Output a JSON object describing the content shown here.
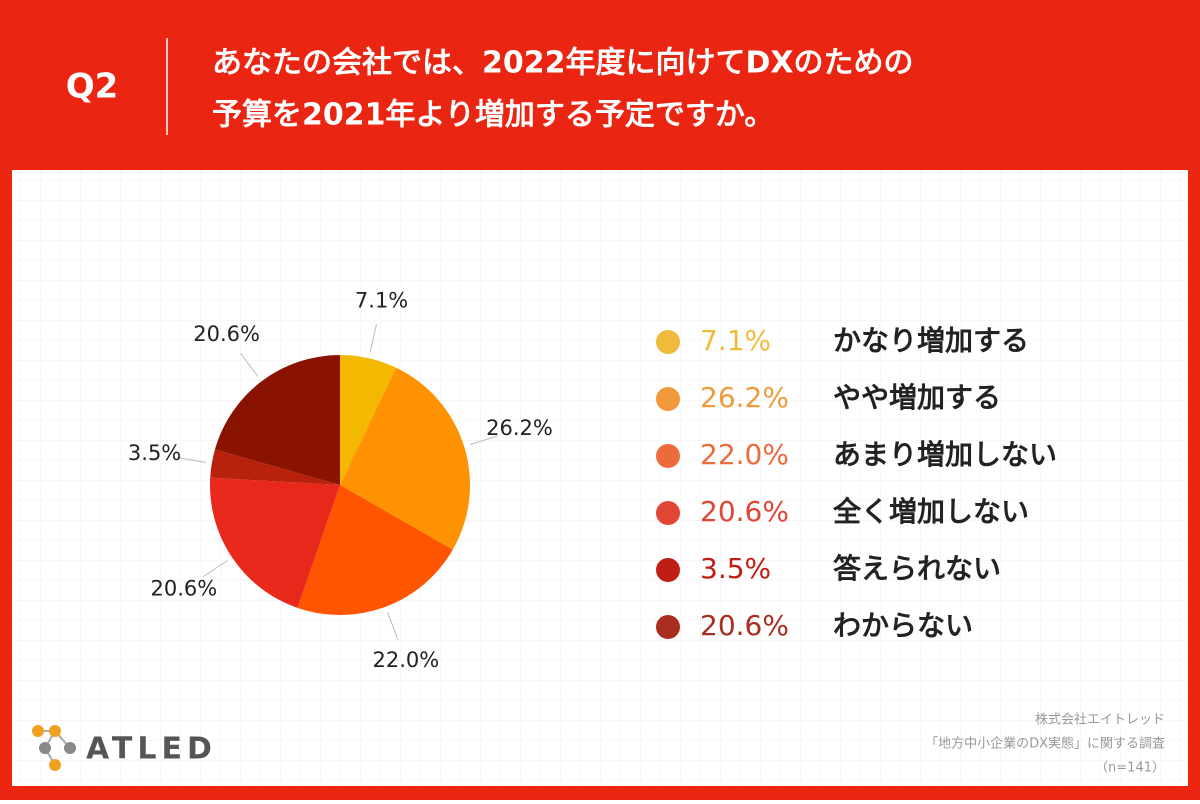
{
  "question": "Q2",
  "title": [
    "あなたの会社では、2022年度に向けてDXのための",
    "予算を2021年より増加する予定ですか。"
  ],
  "chart_data": {
    "type": "pie",
    "categories": [
      "かなり増加する",
      "やや増加する",
      "あまり増加しない",
      "全く増加しない",
      "答えられない",
      "わからない"
    ],
    "values": [
      7.1,
      26.2,
      22.0,
      20.6,
      3.5,
      20.6
    ],
    "value_labels": [
      "7.1%",
      "26.2%",
      "22.0%",
      "20.6%",
      "3.5%",
      "20.6%"
    ],
    "colors": [
      "#f5b800",
      "#ff9200",
      "#ff5500",
      "#e8281a",
      "#b8220c",
      "#8a1300"
    ],
    "legend_colors": [
      "#f0bb3c",
      "#f09a3c",
      "#ec6a3c",
      "#e04535",
      "#c01e14",
      "#a82e20"
    ]
  },
  "logo": "ATLED",
  "source": [
    "株式会社エイトレッド",
    "「地方中小企業のDX実態」に関する調査",
    "（n=141）"
  ]
}
